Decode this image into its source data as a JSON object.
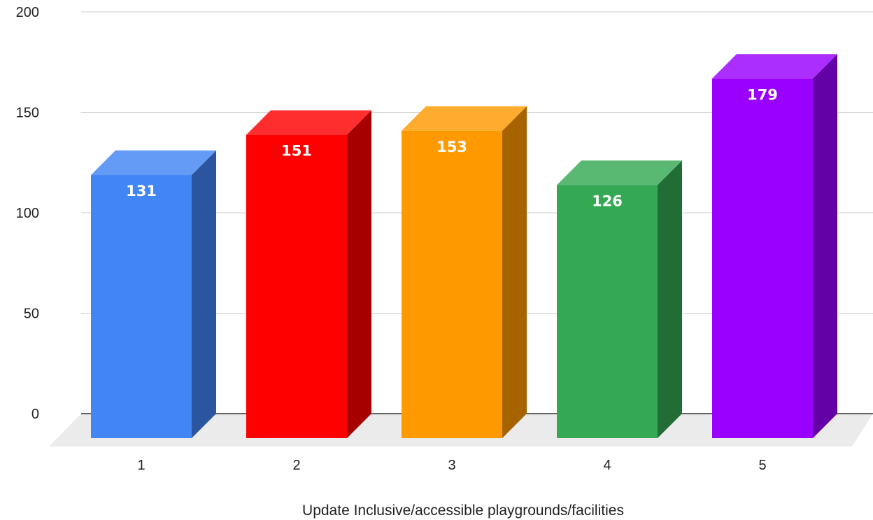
{
  "chart_data": {
    "type": "bar",
    "title": "",
    "xlabel": "Update Inclusive/accessible playgrounds/facilities",
    "ylabel": "",
    "categories": [
      "1",
      "2",
      "3",
      "4",
      "5"
    ],
    "values": [
      131,
      151,
      153,
      126,
      179
    ],
    "bar_colors": [
      "#4285f4",
      "#ff0000",
      "#ff9900",
      "#34a853",
      "#9900ff"
    ],
    "ylim": [
      0,
      200
    ],
    "yticks": [
      0,
      50,
      100,
      150,
      200
    ],
    "grid": true,
    "legend": "none",
    "style": "3d"
  }
}
